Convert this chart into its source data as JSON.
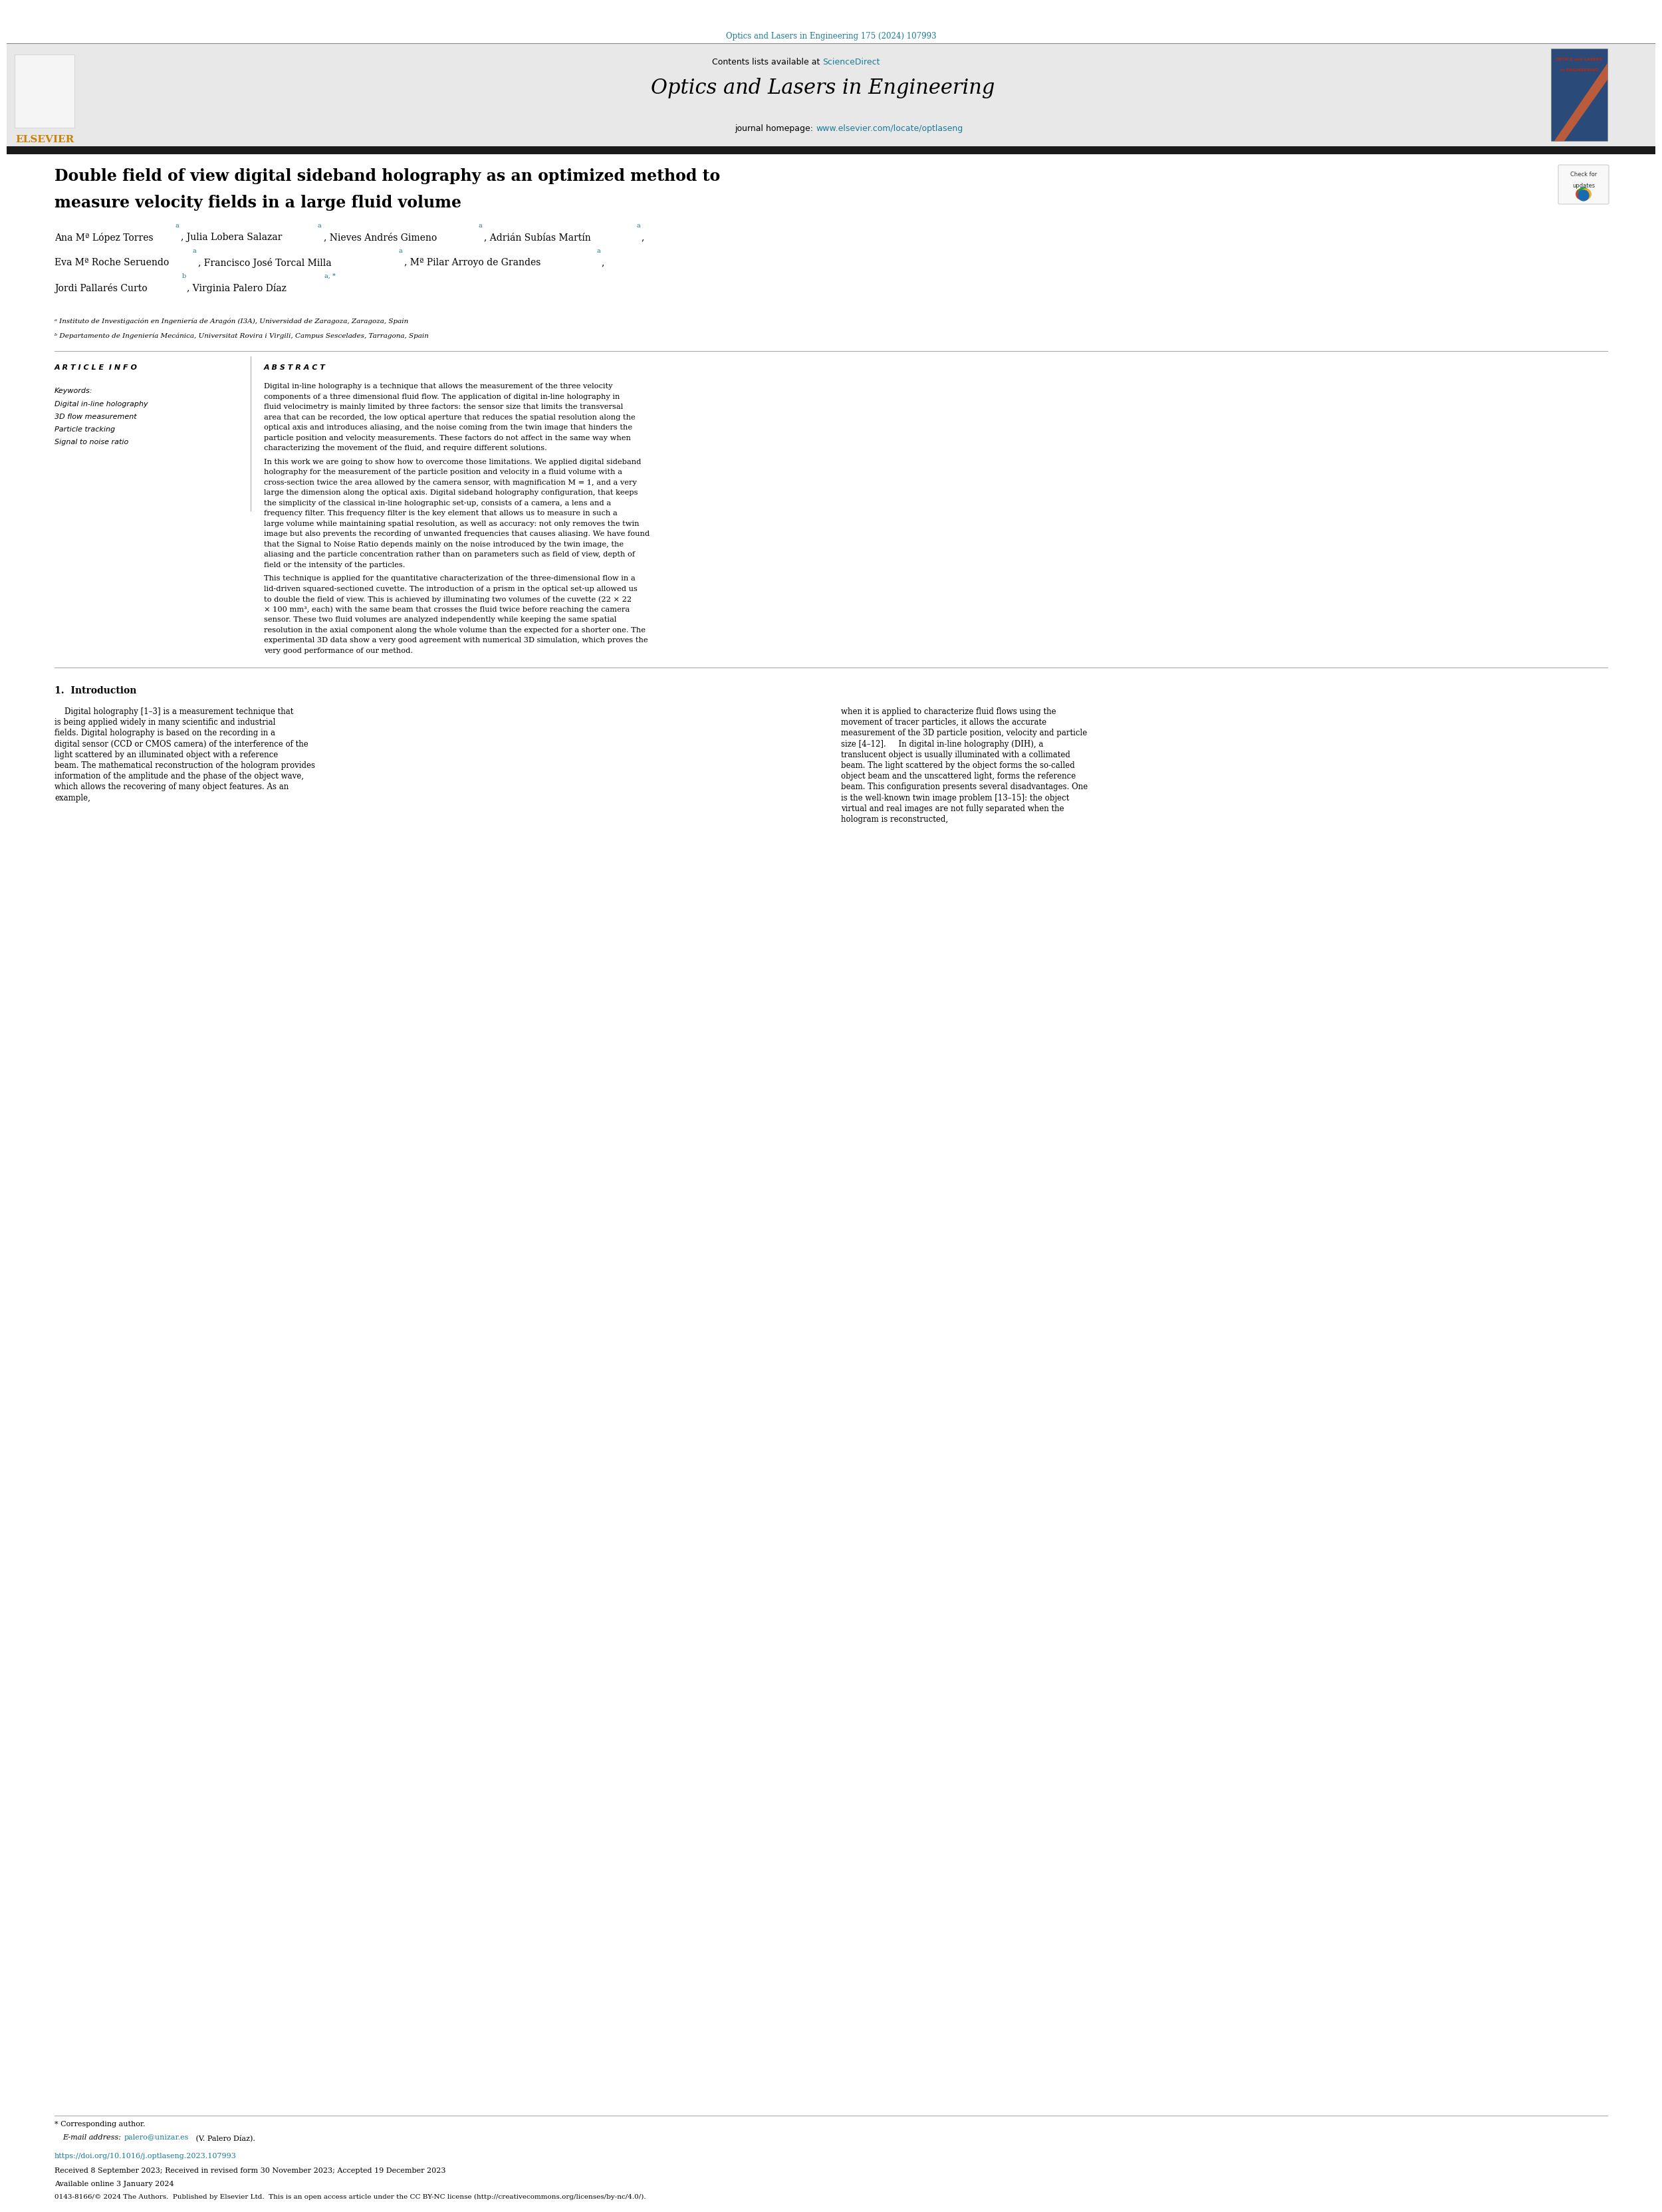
{
  "page_width": 24.8,
  "page_height": 33.07,
  "bg_color": "#ffffff",
  "top_journal_ref": "Optics and Lasers in Engineering 175 (2024) 107993",
  "top_journal_ref_color": "#1a7a9a",
  "header_bg": "#e8e8e8",
  "header_contents_line": "Contents lists available at",
  "sciencedirect_text": "ScienceDirect",
  "sciencedirect_color": "#1a7a9a",
  "journal_title": "Optics and Lasers in Engineering",
  "journal_homepage_label": "journal homepage:",
  "journal_url": "www.elsevier.com/locate/optlaseng",
  "journal_url_color": "#1a7a9a",
  "elsevier_text": "ELSEVIER",
  "elsevier_color": "#c8820a",
  "thick_bar_color": "#1a1a1a",
  "article_title_line1": "Double field of view digital sideband holography as an optimized method to",
  "article_title_line2": "measure velocity fields in a large fluid volume",
  "authors_line1": "Ana Mª López Torres",
  "authors_line1_sup1": "a",
  "sep1": ", Julia Lobera Salazar",
  "sep1_sup": "a",
  "sep2": ", Nieves Andrés Gimeno",
  "sep2_sup": "a",
  "sep3": ", Adrián Subías Martín",
  "sep3_sup": "a",
  "sep3_comma": ",",
  "authors_line2_1": "Eva Mª Roche Seruendo",
  "authors_line2_1_sup": "a",
  "authors_line2_2": ", Francisco José Torcal Milla",
  "authors_line2_2_sup": "a",
  "authors_line2_3": ", Mª Pilar Arroyo de Grandes",
  "authors_line2_3_sup": "a",
  "authors_line2_comma": ",",
  "authors_line3_1": "Jordi Pallarés Curto",
  "authors_line3_1_sup": "b",
  "authors_line3_2": ", Virginia Palero Díaz",
  "authors_line3_2_sup": "a, *",
  "affil_a": "ᵃ Instituto de Investigación en Ingeniería de Aragón (I3A), Universidad de Zaragoza, Zaragoza, Spain",
  "affil_b": "ᵇ Departamento de Ingeniería Mecánica, Universitat Rovira i Virgili, Campus Sescelades, Tarragona, Spain",
  "article_info_title": "A R T I C L E  I N F O",
  "keywords_title": "Keywords:",
  "keywords": [
    "Digital in-line holography",
    "3D flow measurement",
    "Particle tracking",
    "Signal to noise ratio"
  ],
  "abstract_title": "A B S T R A C T",
  "abstract_text": "Digital in-line holography is a technique that allows the measurement of the three velocity components of a three dimensional fluid flow. The application of digital in-line holography in fluid velocimetry is mainly limited by three factors: the sensor size that limits the transversal area that can be recorded, the low optical aperture that reduces the spatial resolution along the optical axis and introduces aliasing, and the noise coming from the twin image that hinders the particle position and velocity measurements. These factors do not affect in the same way when characterizing the movement of the fluid, and require different solutions.\n    In this work we are going to show how to overcome those limitations. We applied digital sideband holography for the measurement of the particle position and velocity in a fluid volume with a cross-section twice the area allowed by the camera sensor, with magnification M = 1, and a very large the dimension along the optical axis. Digital sideband holography configuration, that keeps the simplicity of the classical in-line holographic set-up, consists of a camera, a lens and a frequency filter. This frequency filter is the key element that allows us to measure in such a large volume while maintaining spatial resolution, as well as accuracy: not only removes the twin image but also prevents the recording of unwanted frequencies that causes aliasing. We have found that the Signal to Noise Ratio depends mainly on the noise introduced by the twin image, the aliasing and the particle concentration rather than on parameters such as field of view, depth of field or the intensity of the particles.\n    This technique is applied for the quantitative characterization of the three-dimensional flow in a lid-driven squared-sectioned cuvette. The introduction of a prism in the optical set-up allowed us to double the field of view. This is achieved by illuminating two volumes of the cuvette (22 × 22 × 100 mm³, each) with the same beam that crosses the fluid twice before reaching the camera sensor. These two fluid volumes are analyzed independently while keeping the same spatial resolution in the axial component along the whole volume than the expected for a shorter one. The experimental 3D data show a very good agreement with numerical 3D simulation, which proves the very good performance of our method.",
  "intro_title": "1.  Introduction",
  "intro_text_col1": "    Digital holography [1–3] is a measurement technique that is being applied widely in many scientific and industrial fields. Digital holography is based on the recording in a digital sensor (CCD or CMOS camera) of the interference of the light scattered by an illuminated object with a reference beam. The mathematical reconstruction of the hologram provides information of the amplitude and the phase of the object wave, which allows the recovering of many object features. As an example,",
  "intro_text_col2": "when it is applied to characterize fluid flows using the movement of tracer particles, it allows the accurate measurement of the 3D particle position, velocity and particle size [4–12].\n    In digital in-line holography (DIH), a translucent object is usually illuminated with a collimated beam. The light scattered by the object forms the so-called object beam and the unscattered light, forms the reference beam. This configuration presents several disadvantages. One is the well-known twin image problem [13–15]: the object virtual and real images are not fully separated when the hologram is reconstructed,",
  "footnote_star": "* Corresponding author.",
  "footnote_email_label": "E-mail address:",
  "footnote_email": "palero@unizar.es",
  "footnote_email_color": "#1a7a9a",
  "footnote_email_name": "(V. Palero Díaz).",
  "doi_line": "https://doi.org/10.1016/j.optlaseng.2023.107993",
  "doi_color": "#1a7a9a",
  "received_line": "Received 8 September 2023; Received in revised form 30 November 2023; Accepted 19 December 2023",
  "available_line": "Available online 3 January 2024",
  "license_line": "0143-8166/© 2024 The Authors.  Published by Elsevier Ltd.  This is an open access article under the CC BY-NC license (http://creativecommons.org/licenses/by-nc/4.0/).",
  "license_url": "http://creativecommons.org/licenses/by-nc/4.0/",
  "license_url_color": "#1a7a9a"
}
